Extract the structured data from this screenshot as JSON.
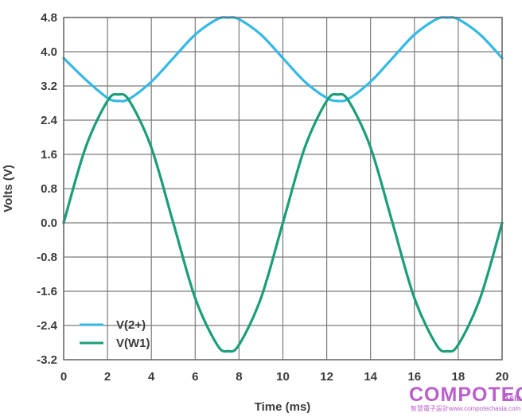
{
  "chart_data": {
    "type": "line",
    "xlabel": "Time (ms)",
    "ylabel": "Volts (V)",
    "xlim": [
      0,
      20
    ],
    "ylim": [
      -3.2,
      4.8
    ],
    "x_ticks": [
      "0",
      "2",
      "4",
      "6",
      "8",
      "10",
      "12",
      "14",
      "16",
      "18",
      "20"
    ],
    "y_ticks": [
      "4.8",
      "4.0",
      "3.2",
      "2.4",
      "1.6",
      "0.8",
      "0.0",
      "-0.8",
      "-1.6",
      "-2.4",
      "-3.2"
    ],
    "grid": true,
    "legend_position": "bottom-left",
    "series": [
      {
        "name": "V(2+)",
        "color": "#35b8e6",
        "x": [
          0,
          1,
          2,
          2.5,
          3,
          4,
          5,
          6,
          7,
          7.5,
          8,
          9,
          10,
          11,
          12,
          12.5,
          13,
          14,
          15,
          16,
          17,
          17.5,
          18,
          19,
          20
        ],
        "y": [
          3.85,
          3.35,
          2.92,
          2.85,
          2.9,
          3.3,
          3.85,
          4.4,
          4.76,
          4.8,
          4.76,
          4.4,
          3.85,
          3.3,
          2.92,
          2.85,
          2.9,
          3.3,
          3.85,
          4.4,
          4.76,
          4.8,
          4.76,
          4.4,
          3.85
        ]
      },
      {
        "name": "V(W1)",
        "color": "#1a9e78",
        "x": [
          0,
          1,
          2,
          2.5,
          3,
          4,
          5,
          6,
          7,
          7.5,
          8,
          9,
          10,
          11,
          12,
          12.5,
          13,
          14,
          15,
          16,
          17,
          17.5,
          18,
          19,
          20
        ],
        "y": [
          0.0,
          1.76,
          2.85,
          3.0,
          2.85,
          1.76,
          0.0,
          -1.76,
          -2.85,
          -3.0,
          -2.85,
          -1.76,
          0.0,
          1.76,
          2.85,
          3.0,
          2.85,
          1.76,
          0.0,
          -1.76,
          -2.85,
          -3.0,
          -2.85,
          -1.76,
          0.0
        ]
      }
    ]
  },
  "watermark": {
    "main": "COMPOTECH",
    "asia": "Asia",
    "sub": "智慧電子設計www.compotechasia.com"
  }
}
